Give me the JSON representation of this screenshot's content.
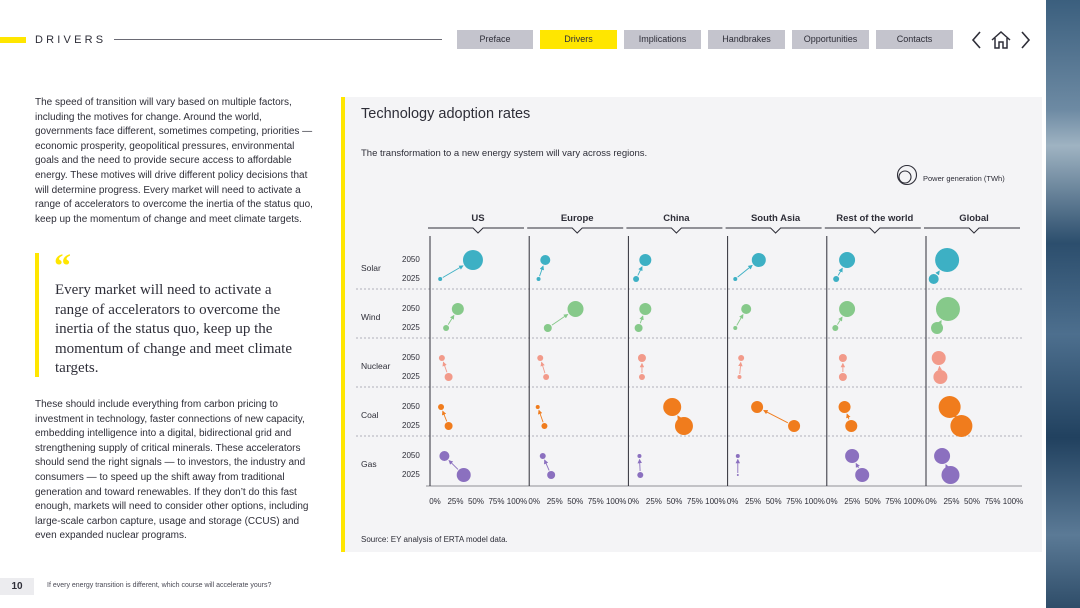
{
  "header": {
    "section": "DRIVERS"
  },
  "nav": [
    {
      "label": "Preface",
      "active": false
    },
    {
      "label": "Drivers",
      "active": true
    },
    {
      "label": "Implications",
      "active": false
    },
    {
      "label": "Handbrakes",
      "active": false
    },
    {
      "label": "Opportunities",
      "active": false
    },
    {
      "label": "Contacts",
      "active": false
    }
  ],
  "intro": "The speed of transition will vary based on multiple factors, including the motives for change. Around the world, governments face different, sometimes competing, priorities — economic prosperity, geopolitical pressures, environmental goals and the need to provide secure access to affordable energy. These motives will drive different policy decisions that will determine progress. Every market will need to activate a range of accelerators to overcome the inertia of the status quo, keep up the momentum of change and meet climate targets.",
  "quote": {
    "mark": "“",
    "text": "Every market will need to activate a range of accelerators to overcome the inertia of the status quo, keep up the momentum of change and meet climate targets."
  },
  "body2": "These should include everything from carbon pricing to investment in technology, faster connections of new capacity, embedding intelligence into a digital, bidirectional grid and strengthening supply of critical minerals. These accelerators should send the right signals — to investors, the industry and consumers — to speed up the shift away from traditional generation and toward renewables. If they don’t do this fast enough, markets will need to consider other options, including large-scale carbon capture, usage and storage (CCUS) and even expanded nuclear programs.",
  "footer": {
    "page": "10",
    "text": "If every energy transition is different, which course will accelerate yours?"
  },
  "panel": {
    "title": "Technology adoption rates",
    "subtitle": "The transformation to a new energy system will vary across regions.",
    "legend": "Power generation (TWh)",
    "source": "Source: EY analysis of ERTA model data."
  },
  "colors": {
    "Solar": "#3db0c4",
    "Wind": "#86c98a",
    "Nuclear": "#f29a8a",
    "Coal": "#f07c1d",
    "Gas": "#8b70bf",
    "accent": "#ffe600"
  },
  "chart_data": {
    "type": "scatter",
    "regions": [
      "US",
      "Europe",
      "China",
      "South Asia",
      "Rest of the world",
      "Global"
    ],
    "technologies": [
      "Solar",
      "Wind",
      "Nuclear",
      "Coal",
      "Gas"
    ],
    "years": [
      "2050",
      "2025"
    ],
    "x_ticks": [
      "0%",
      "25%",
      "50%",
      "75%",
      "100%"
    ],
    "xlim": [
      0,
      100
    ],
    "size_legend": "Power generation (TWh)",
    "points": {
      "Solar": {
        "US": {
          "2025": [
            5,
            2
          ],
          "2050": [
            44,
            10
          ]
        },
        "Europe": {
          "2025": [
            4,
            2
          ],
          "2050": [
            12,
            5
          ]
        },
        "China": {
          "2025": [
            2,
            3
          ],
          "2050": [
            13,
            6
          ]
        },
        "South Asia": {
          "2025": [
            2,
            2
          ],
          "2050": [
            30,
            7
          ]
        },
        "Rest of the world": {
          "2025": [
            4,
            3
          ],
          "2050": [
            17,
            8
          ]
        },
        "Global": {
          "2025": [
            2,
            5
          ],
          "2050": [
            18,
            12
          ]
        }
      },
      "Wind": {
        "US": {
          "2025": [
            12,
            3
          ],
          "2050": [
            26,
            6
          ]
        },
        "Europe": {
          "2025": [
            15,
            4
          ],
          "2050": [
            48,
            8
          ]
        },
        "China": {
          "2025": [
            5,
            4
          ],
          "2050": [
            13,
            6
          ]
        },
        "South Asia": {
          "2025": [
            2,
            2
          ],
          "2050": [
            15,
            5
          ]
        },
        "Rest of the world": {
          "2025": [
            3,
            3
          ],
          "2050": [
            17,
            8
          ]
        },
        "Global": {
          "2025": [
            6,
            6
          ],
          "2050": [
            19,
            12
          ]
        }
      },
      "Nuclear": {
        "US": {
          "2025": [
            15,
            4
          ],
          "2050": [
            7,
            3
          ]
        },
        "Europe": {
          "2025": [
            13,
            3
          ],
          "2050": [
            6,
            3
          ]
        },
        "China": {
          "2025": [
            9,
            3
          ],
          "2050": [
            9,
            4
          ]
        },
        "South Asia": {
          "2025": [
            7,
            2
          ],
          "2050": [
            9,
            3
          ]
        },
        "Rest of the world": {
          "2025": [
            12,
            4
          ],
          "2050": [
            12,
            4
          ]
        },
        "Global": {
          "2025": [
            10,
            7
          ],
          "2050": [
            8,
            7
          ]
        }
      },
      "Coal": {
        "US": {
          "2025": [
            15,
            4
          ],
          "2050": [
            6,
            3
          ]
        },
        "Europe": {
          "2025": [
            11,
            3
          ],
          "2050": [
            3,
            2
          ]
        },
        "China": {
          "2025": [
            59,
            9
          ],
          "2050": [
            45,
            9
          ]
        },
        "South Asia": {
          "2025": [
            72,
            6
          ],
          "2050": [
            28,
            6
          ]
        },
        "Rest of the world": {
          "2025": [
            22,
            6
          ],
          "2050": [
            14,
            6
          ]
        },
        "Global": {
          "2025": [
            35,
            11
          ],
          "2050": [
            21,
            11
          ]
        }
      },
      "Gas": {
        "US": {
          "2025": [
            33,
            7
          ],
          "2050": [
            10,
            5
          ]
        },
        "Europe": {
          "2025": [
            19,
            4
          ],
          "2050": [
            9,
            3
          ]
        },
        "China": {
          "2025": [
            7,
            3
          ],
          "2050": [
            6,
            2
          ]
        },
        "South Asia": {
          "2025": [
            5,
            1
          ],
          "2050": [
            5,
            2
          ]
        },
        "Rest of the world": {
          "2025": [
            35,
            7
          ],
          "2050": [
            23,
            7
          ]
        },
        "Global": {
          "2025": [
            22,
            9
          ],
          "2050": [
            12,
            8
          ]
        }
      }
    },
    "value_note_keys": [
      "x_percent",
      "size_radius_px"
    ]
  }
}
